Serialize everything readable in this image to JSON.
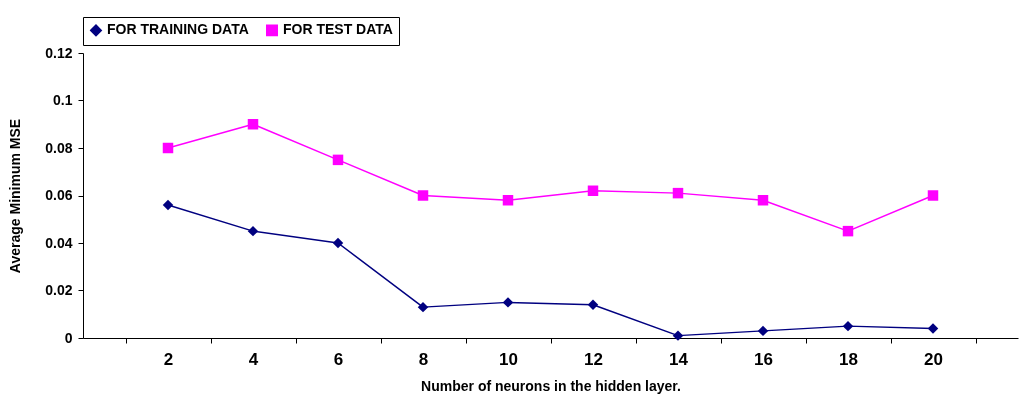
{
  "chart_data": {
    "type": "line",
    "xlabel": "Number of neurons in the hidden layer.",
    "ylabel": "Average Minimum MSE",
    "categories": [
      "2",
      "4",
      "6",
      "8",
      "10",
      "12",
      "14",
      "16",
      "18",
      "20"
    ],
    "ylim": [
      0,
      0.12
    ],
    "yticks": [
      0,
      0.02,
      0.04,
      0.06,
      0.08,
      0.1,
      0.12
    ],
    "grid": false,
    "legend": "top",
    "series": [
      {
        "name": "FOR TRAINING DATA",
        "color": "#000080",
        "marker": "diamond",
        "values": [
          0.056,
          0.045,
          0.04,
          0.013,
          0.015,
          0.014,
          0.001,
          0.003,
          0.005,
          0.004
        ]
      },
      {
        "name": "FOR TEST DATA",
        "color": "#ff00ff",
        "marker": "square",
        "values": [
          0.08,
          0.09,
          0.075,
          0.06,
          0.058,
          0.062,
          0.061,
          0.058,
          0.045,
          0.06
        ]
      }
    ]
  }
}
